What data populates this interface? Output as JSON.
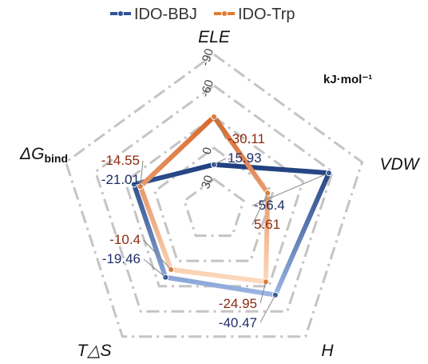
{
  "chart_data": {
    "type": "radar",
    "unit": "kJ·mol⁻¹",
    "axes": [
      {
        "key": "ele",
        "label": "ELE"
      },
      {
        "key": "vdw",
        "label": "VDW"
      },
      {
        "key": "h",
        "label": "H"
      },
      {
        "key": "tds",
        "label": "T△S"
      },
      {
        "key": "dg",
        "label": "ΔG",
        "sub": "bind"
      }
    ],
    "radial_axis": {
      "min": -90,
      "max": 60,
      "ticks": [
        -90,
        -60,
        0,
        30
      ],
      "inverted": true,
      "grid_rings": [
        -90,
        -60,
        -30,
        0,
        30
      ]
    },
    "series": [
      {
        "name": "IDO-BBJ",
        "color": "#2e5597",
        "values": [
          15.93,
          -56.4,
          -40.47,
          -19.46,
          -21.01
        ]
      },
      {
        "name": "IDO-Trp",
        "color": "#e07b35",
        "values": [
          -30.11,
          5.61,
          -24.95,
          -10.4,
          -14.55
        ]
      }
    ],
    "legend": "top-center"
  }
}
